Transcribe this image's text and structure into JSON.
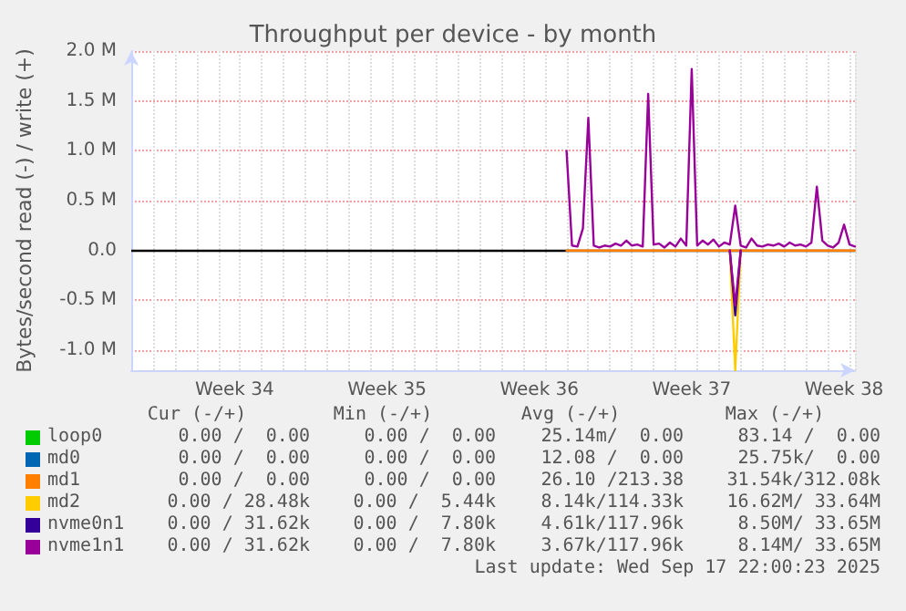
{
  "chart_data": {
    "type": "line",
    "title": "Throughput per device - by month",
    "ylabel": "Bytes/second read (-) / write (+)",
    "categories": [
      null,
      null,
      null,
      null,
      null,
      null,
      null,
      null,
      null,
      null,
      null,
      null,
      null,
      null,
      null,
      null,
      null,
      null,
      null,
      "Week 34",
      null,
      null,
      null,
      null,
      null,
      null,
      null,
      null,
      null,
      null,
      null,
      null,
      null,
      null,
      null,
      null,
      null,
      null,
      null,
      null,
      null,
      null,
      null,
      null,
      null,
      null,
      null,
      "Week 35",
      null,
      null,
      null,
      null,
      null,
      null,
      null,
      null,
      null,
      null,
      null,
      null,
      null,
      null,
      null,
      null,
      null,
      null,
      null,
      null,
      null,
      null,
      null,
      null,
      null,
      null,
      null,
      "Week 36",
      null,
      null,
      null,
      null,
      null,
      null,
      null,
      null,
      null,
      null,
      null,
      null,
      null,
      null,
      null,
      null,
      null,
      null,
      null,
      null,
      null,
      null,
      null,
      null,
      null,
      null,
      null,
      "Week 37",
      null,
      null,
      null,
      null,
      null,
      null,
      null,
      null,
      null,
      null,
      null,
      null,
      null,
      null,
      null,
      null,
      null,
      null,
      null,
      null,
      null,
      null,
      null,
      null,
      null,
      null,
      null,
      "Week 38",
      null,
      null
    ],
    "ylim": [
      -1200000,
      2000000
    ],
    "yticks": [
      {
        "value": -1000000,
        "label": "-1.0 M"
      },
      {
        "value": -500000,
        "label": "-0.5 M"
      },
      {
        "value": 0,
        "label": "0.0"
      },
      {
        "value": 500000,
        "label": "0.5 M"
      },
      {
        "value": 1000000,
        "label": "1.0 M"
      },
      {
        "value": 1500000,
        "label": "1.5 M"
      },
      {
        "value": 2000000,
        "label": "2.0 M"
      }
    ],
    "grid": true,
    "legend": "bottom left",
    "marker": "none",
    "line_style": "solid",
    "ref_lines": [
      {
        "axis": "y",
        "value": 0,
        "color": "#000000"
      }
    ],
    "series": [
      {
        "name": "loop0",
        "color": "#00cc00",
        "values": [
          null,
          null,
          null,
          null,
          null,
          null,
          null,
          null,
          null,
          null,
          null,
          null,
          null,
          null,
          null,
          null,
          null,
          null,
          null,
          null,
          null,
          null,
          null,
          null,
          null,
          null,
          null,
          null,
          null,
          null,
          null,
          null,
          null,
          null,
          null,
          null,
          null,
          null,
          null,
          null,
          null,
          null,
          null,
          null,
          null,
          null,
          null,
          null,
          null,
          null,
          null,
          null,
          null,
          null,
          null,
          null,
          null,
          null,
          null,
          null,
          null,
          null,
          null,
          null,
          null,
          null,
          null,
          null,
          null,
          null,
          null,
          null,
          null,
          null,
          null,
          null,
          null,
          null,
          null,
          null,
          null,
          null,
          null,
          null,
          null,
          null,
          null,
          null,
          null,
          null,
          null,
          null,
          null,
          null,
          null,
          null,
          null,
          null,
          null,
          null,
          null,
          null,
          null,
          null,
          null,
          null,
          null,
          null,
          null,
          null,
          null,
          null,
          null,
          null,
          null,
          null,
          null,
          null,
          null,
          null,
          null,
          null,
          null,
          null,
          null,
          null,
          null,
          null,
          null,
          null,
          null,
          null,
          null,
          null
        ]
      },
      {
        "name": "md0",
        "color": "#0066b3",
        "values": [
          null,
          null,
          null,
          null,
          null,
          null,
          null,
          null,
          null,
          null,
          null,
          null,
          null,
          null,
          null,
          null,
          null,
          null,
          null,
          null,
          null,
          null,
          null,
          null,
          null,
          null,
          null,
          null,
          null,
          null,
          null,
          null,
          null,
          null,
          null,
          null,
          null,
          null,
          null,
          null,
          null,
          null,
          null,
          null,
          null,
          null,
          null,
          null,
          null,
          null,
          null,
          null,
          null,
          null,
          null,
          null,
          null,
          null,
          null,
          null,
          null,
          null,
          null,
          null,
          null,
          null,
          null,
          null,
          null,
          null,
          null,
          null,
          null,
          null,
          null,
          null,
          null,
          null,
          null,
          null,
          null,
          null,
          null,
          null,
          null,
          null,
          null,
          null,
          null,
          null,
          null,
          null,
          null,
          null,
          null,
          null,
          null,
          null,
          null,
          null,
          null,
          null,
          null,
          null,
          null,
          null,
          null,
          null,
          null,
          null,
          null,
          null,
          null,
          null,
          null,
          null,
          null,
          null,
          null,
          null,
          null,
          null,
          null,
          null,
          null,
          null,
          null,
          null,
          null,
          null,
          null,
          null,
          null,
          null
        ]
      },
      {
        "name": "md1",
        "color": "#ff8000",
        "values": [
          null,
          null,
          null,
          null,
          null,
          null,
          null,
          null,
          null,
          null,
          null,
          null,
          null,
          null,
          null,
          null,
          null,
          null,
          null,
          null,
          null,
          null,
          null,
          null,
          null,
          null,
          null,
          null,
          null,
          null,
          null,
          null,
          null,
          null,
          null,
          null,
          null,
          null,
          null,
          null,
          null,
          null,
          null,
          null,
          null,
          null,
          null,
          null,
          null,
          null,
          null,
          null,
          null,
          null,
          null,
          null,
          null,
          null,
          null,
          null,
          null,
          null,
          null,
          null,
          null,
          null,
          null,
          null,
          null,
          null,
          null,
          null,
          null,
          null,
          null,
          null,
          null,
          null,
          null,
          null,
          0,
          0,
          0,
          0,
          0,
          0,
          0,
          0,
          0,
          0,
          0,
          0,
          0,
          0,
          0,
          0,
          0,
          0,
          0,
          0,
          0,
          0,
          0,
          0,
          0,
          0,
          0,
          0,
          0,
          0,
          0,
          0,
          0,
          0,
          0,
          0,
          0,
          0,
          0,
          0,
          0,
          0,
          0,
          0,
          0,
          0,
          0,
          0,
          0,
          0,
          0,
          0,
          0,
          0
        ]
      },
      {
        "name": "md2",
        "color": "#ffcc00",
        "values": [
          null,
          null,
          null,
          null,
          null,
          null,
          null,
          null,
          null,
          null,
          null,
          null,
          null,
          null,
          null,
          null,
          null,
          null,
          null,
          null,
          null,
          null,
          null,
          null,
          null,
          null,
          null,
          null,
          null,
          null,
          null,
          null,
          null,
          null,
          null,
          null,
          null,
          null,
          null,
          null,
          null,
          null,
          null,
          null,
          null,
          null,
          null,
          null,
          null,
          null,
          null,
          null,
          null,
          null,
          null,
          null,
          null,
          null,
          null,
          null,
          null,
          null,
          null,
          null,
          null,
          null,
          null,
          null,
          null,
          null,
          null,
          null,
          null,
          null,
          null,
          null,
          null,
          null,
          null,
          null,
          null,
          null,
          null,
          null,
          null,
          null,
          null,
          null,
          null,
          null,
          null,
          null,
          null,
          null,
          null,
          null,
          null,
          null,
          null,
          null,
          null,
          null,
          null,
          null,
          null,
          null,
          null,
          null,
          null,
          null,
          0,
          -1200000,
          0,
          null,
          null,
          null,
          null,
          null,
          null,
          null,
          null,
          null,
          null,
          null,
          null,
          null,
          null,
          null,
          null,
          null,
          null,
          null,
          null,
          null
        ]
      },
      {
        "name": "nvme0n1",
        "color": "#330099",
        "values": [
          null,
          null,
          null,
          null,
          null,
          null,
          null,
          null,
          null,
          null,
          null,
          null,
          null,
          null,
          null,
          null,
          null,
          null,
          null,
          null,
          null,
          null,
          null,
          null,
          null,
          null,
          null,
          null,
          null,
          null,
          null,
          null,
          null,
          null,
          null,
          null,
          null,
          null,
          null,
          null,
          null,
          null,
          null,
          null,
          null,
          null,
          null,
          null,
          null,
          null,
          null,
          null,
          null,
          null,
          null,
          null,
          null,
          null,
          null,
          null,
          null,
          null,
          null,
          null,
          null,
          null,
          null,
          null,
          null,
          null,
          null,
          null,
          null,
          null,
          null,
          null,
          null,
          null,
          null,
          null,
          null,
          null,
          null,
          null,
          null,
          null,
          null,
          null,
          null,
          null,
          null,
          null,
          null,
          null,
          null,
          null,
          null,
          null,
          null,
          null,
          null,
          null,
          null,
          null,
          null,
          null,
          null,
          null,
          null,
          null,
          0,
          -650000,
          0,
          null,
          null,
          null,
          null,
          null,
          null,
          null,
          null,
          null,
          null,
          null,
          null,
          null,
          null,
          null,
          null,
          null,
          null,
          null,
          null,
          null
        ]
      },
      {
        "name": "nvme1n1",
        "color": "#990099",
        "values": [
          null,
          null,
          null,
          null,
          null,
          null,
          null,
          null,
          null,
          null,
          null,
          null,
          null,
          null,
          null,
          null,
          null,
          null,
          null,
          null,
          null,
          null,
          null,
          null,
          null,
          null,
          null,
          null,
          null,
          null,
          null,
          null,
          null,
          null,
          null,
          null,
          null,
          null,
          null,
          null,
          null,
          null,
          null,
          null,
          null,
          null,
          null,
          null,
          null,
          null,
          null,
          null,
          null,
          null,
          null,
          null,
          null,
          null,
          null,
          null,
          null,
          null,
          null,
          null,
          null,
          null,
          null,
          null,
          null,
          null,
          null,
          null,
          null,
          null,
          null,
          null,
          null,
          null,
          null,
          null,
          1000000,
          50000,
          40000,
          220000,
          1330000,
          50000,
          30000,
          50000,
          40000,
          70000,
          50000,
          100000,
          50000,
          60000,
          40000,
          1570000,
          60000,
          70000,
          30000,
          80000,
          40000,
          120000,
          50000,
          1820000,
          50000,
          100000,
          60000,
          110000,
          40000,
          80000,
          60000,
          450000,
          50000,
          30000,
          120000,
          50000,
          40000,
          60000,
          50000,
          70000,
          40000,
          80000,
          50000,
          60000,
          40000,
          80000,
          640000,
          100000,
          50000,
          30000,
          80000,
          260000,
          60000,
          40000
        ]
      },
      {
        "color": "#990099",
        "values": [
          null,
          null,
          null,
          null,
          null,
          null,
          null,
          null,
          null,
          null,
          null,
          null,
          null,
          null,
          null,
          null,
          null,
          null,
          null,
          null,
          null,
          null,
          null,
          null,
          null,
          null,
          null,
          null,
          null,
          null,
          null,
          null,
          null,
          null,
          null,
          null,
          null,
          null,
          null,
          null,
          null,
          null,
          null,
          null,
          null,
          null,
          null,
          null,
          null,
          null,
          null,
          null,
          null,
          null,
          null,
          null,
          null,
          null,
          null,
          null,
          null,
          null,
          null,
          null,
          null,
          null,
          null,
          null,
          null,
          null,
          null,
          null,
          null,
          null,
          null,
          null,
          null,
          null,
          null,
          null,
          null,
          null,
          null,
          null,
          null,
          null,
          null,
          null,
          null,
          null,
          null,
          null,
          null,
          null,
          null,
          null,
          null,
          null,
          null,
          null,
          null,
          null,
          null,
          null,
          null,
          null,
          null,
          null,
          null,
          null,
          0,
          -550000,
          0,
          null,
          null,
          null,
          null,
          null,
          null,
          null,
          null,
          null,
          null,
          null,
          null,
          null,
          null,
          null,
          null,
          null,
          null,
          null,
          null,
          null
        ]
      }
    ],
    "annotations": [
      "Cur (-/+)",
      "Min (-/+)",
      "Avg (-/+)",
      "Max (-/+)",
      "0.00 /  0.00",
      "0.00 /  0.00",
      "25.14m/  0.00",
      "83.14 /  0.00",
      "0.00 /  0.00",
      "0.00 /  0.00",
      "12.08 /  0.00",
      "25.75k/  0.00",
      "0.00 /  0.00",
      "0.00 /  0.00",
      "26.10 /213.38",
      "31.54k/312.08k",
      "0.00 / 28.48k",
      "0.00 /  5.44k",
      "8.14k/114.33k",
      "16.62M/ 33.64M",
      "0.00 / 31.62k",
      "0.00 /  7.80k",
      "4.61k/117.96k",
      "8.50M/ 33.65M",
      "0.00 / 31.62k",
      "0.00 /  7.80k",
      "3.67k/117.96k",
      "8.14M/ 33.65M",
      "Last update: Wed Sep 17 22:00:23 2025"
    ]
  }
}
